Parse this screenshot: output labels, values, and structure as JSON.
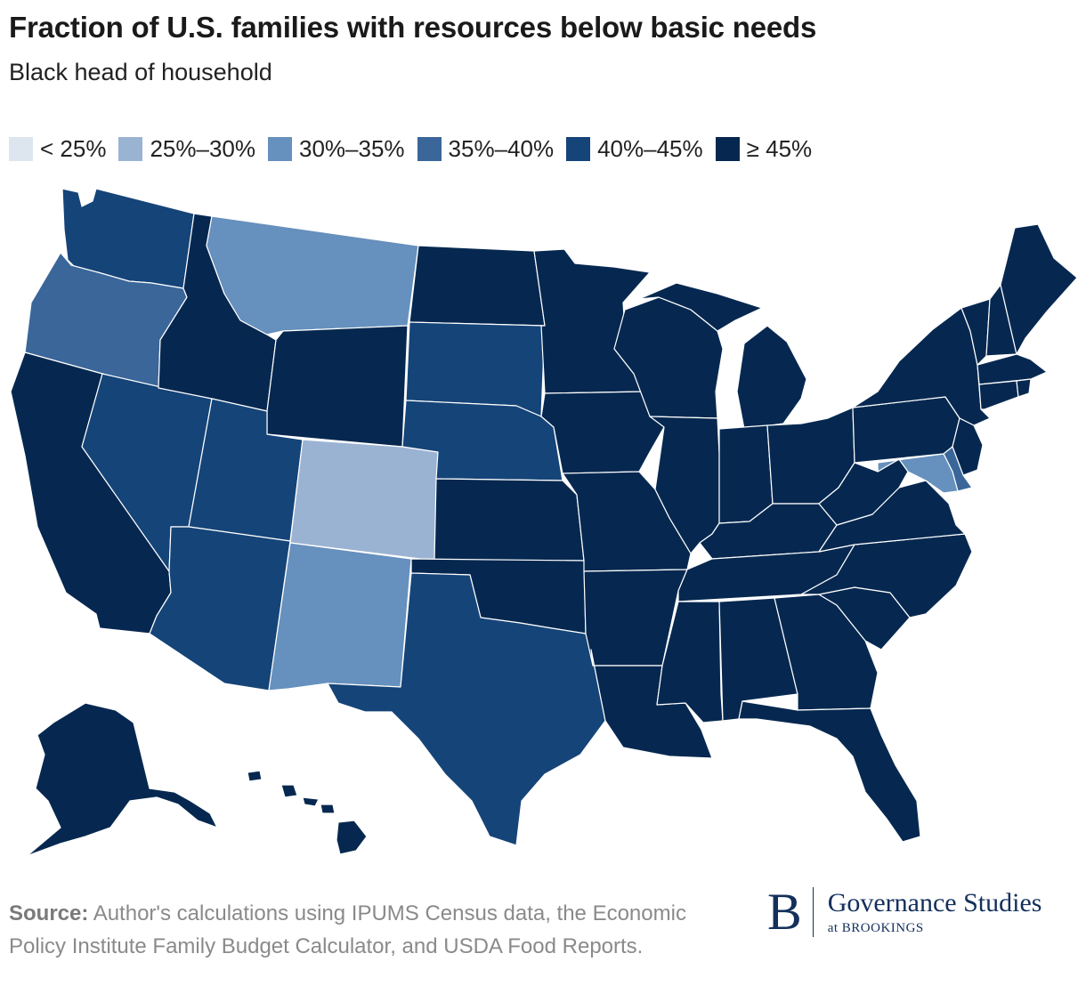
{
  "title": "Fraction of U.S. families with resources below basic needs",
  "subtitle": "Black head of household",
  "legend": [
    {
      "label": "< 25%",
      "color": "#dde6ef"
    },
    {
      "label": "25%–30%",
      "color": "#9bb3d3"
    },
    {
      "label": "30%–35%",
      "color": "#6690bd"
    },
    {
      "label": "35%–40%",
      "color": "#3a6699"
    },
    {
      "label": "40%–45%",
      "color": "#154478"
    },
    {
      "label": "≥ 45%",
      "color": "#062850"
    }
  ],
  "states": {
    "WA": 4,
    "OR": 3,
    "CA": 5,
    "NV": 4,
    "ID": 5,
    "MT": 2,
    "WY": 5,
    "UT": 4,
    "AZ": 4,
    "CO": 1,
    "NM": 2,
    "ND": 5,
    "SD": 4,
    "NE": 4,
    "KS": 5,
    "OK": 5,
    "TX": 4,
    "MN": 5,
    "IA": 5,
    "MO": 5,
    "AR": 5,
    "LA": 5,
    "WI": 5,
    "IL": 5,
    "MI": 5,
    "IN": 5,
    "OH": 5,
    "KY": 5,
    "TN": 5,
    "MS": 5,
    "AL": 5,
    "GA": 5,
    "FL": 5,
    "SC": 5,
    "NC": 5,
    "VA": 5,
    "WV": 5,
    "PA": 5,
    "NY": 5,
    "VT": 5,
    "NH": 5,
    "ME": 5,
    "MA": 5,
    "RI": 5,
    "CT": 5,
    "NJ": 5,
    "DE": 3,
    "MD": 2,
    "AK": 5,
    "HI": 5
  },
  "source": {
    "label": "Source:",
    "text": "Author's calculations using IPUMS Census data, the Economic Policy Institute Family Budget Calculator, and USDA Food Reports."
  },
  "logo": {
    "letter": "B",
    "name": "Governance Studies",
    "sub": "at BROOKINGS"
  }
}
